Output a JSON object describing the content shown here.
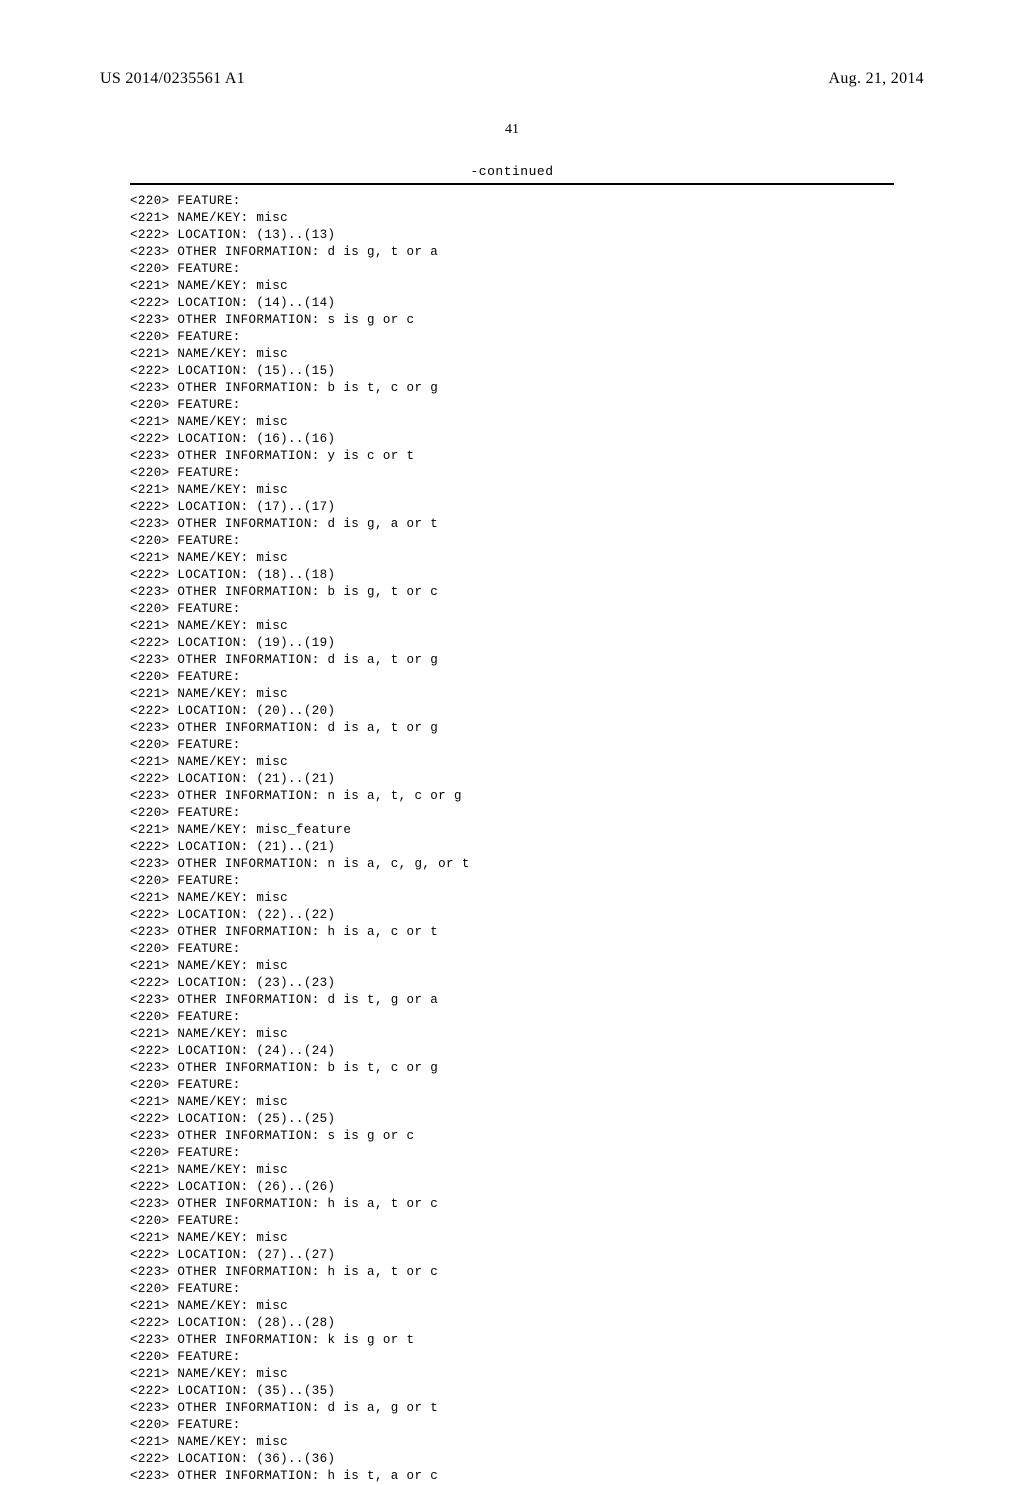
{
  "header": {
    "publication_id": "US 2014/0235561 A1",
    "date": "Aug. 21, 2014"
  },
  "page_number": "41",
  "continued_label": "-continued",
  "features": [
    {
      "location": "(13)..(13)",
      "name_key": "misc",
      "info": "d is g, t or a"
    },
    {
      "location": "(14)..(14)",
      "name_key": "misc",
      "info": "s is g or c"
    },
    {
      "location": "(15)..(15)",
      "name_key": "misc",
      "info": "b is t, c or g"
    },
    {
      "location": "(16)..(16)",
      "name_key": "misc",
      "info": "y is c or t"
    },
    {
      "location": "(17)..(17)",
      "name_key": "misc",
      "info": "d is g, a or t"
    },
    {
      "location": "(18)..(18)",
      "name_key": "misc",
      "info": "b is g, t or c"
    },
    {
      "location": "(19)..(19)",
      "name_key": "misc",
      "info": "d is a, t or g"
    },
    {
      "location": "(20)..(20)",
      "name_key": "misc",
      "info": "d is a, t or g"
    },
    {
      "location": "(21)..(21)",
      "name_key": "misc",
      "info": "n is a, t, c or g"
    },
    {
      "location": "(21)..(21)",
      "name_key": "misc_feature",
      "info": "n is a, c, g, or t"
    },
    {
      "location": "(22)..(22)",
      "name_key": "misc",
      "info": "h is a, c or t"
    },
    {
      "location": "(23)..(23)",
      "name_key": "misc",
      "info": "d is t, g or a"
    },
    {
      "location": "(24)..(24)",
      "name_key": "misc",
      "info": "b is t, c or g"
    },
    {
      "location": "(25)..(25)",
      "name_key": "misc",
      "info": "s is g or c"
    },
    {
      "location": "(26)..(26)",
      "name_key": "misc",
      "info": "h is a, t or c"
    },
    {
      "location": "(27)..(27)",
      "name_key": "misc",
      "info": "h is a, t or c"
    },
    {
      "location": "(28)..(28)",
      "name_key": "misc",
      "info": "k is g or t"
    },
    {
      "location": "(35)..(35)",
      "name_key": "misc",
      "info": "d is a, g or t"
    },
    {
      "location": "(36)..(36)",
      "name_key": "misc",
      "info": "h is t, a or c"
    }
  ],
  "tags": {
    "t220": "<220> FEATURE:",
    "t221_prefix": "<221> NAME/KEY: ",
    "t222_prefix": "<222> LOCATION: ",
    "t223_prefix": "<223> OTHER INFORMATION: "
  }
}
